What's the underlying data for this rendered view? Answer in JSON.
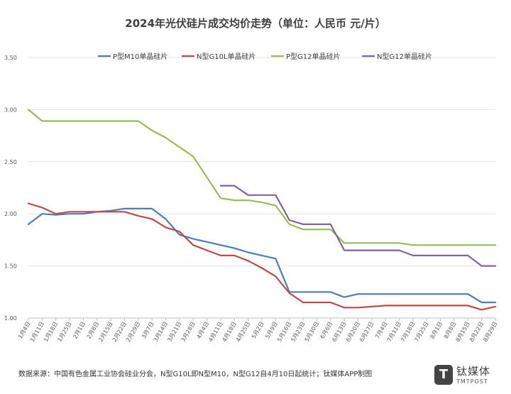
{
  "chart_data": {
    "type": "line",
    "title": "2024年光伏硅片成交均价走势（单位：人民币 元/片）",
    "footnote": "数据来源：中国有色金属工业协会硅业分会，N型G10L即N型M10，N型G12自4月10日起统计；钛媒体APP制图",
    "ylim": [
      1.0,
      3.5
    ],
    "yticks": [
      "1.00",
      "1.50",
      "2.00",
      "2.50",
      "3.00",
      "3.50"
    ],
    "categories": [
      "1月4日",
      "1月11日",
      "1月18日",
      "1月25日",
      "2月1日",
      "2月8日",
      "2月15日",
      "2月22日",
      "2月29日",
      "3月7日",
      "3月14日",
      "3月21日",
      "3月28日",
      "4月4日",
      "4月11日",
      "4月18日",
      "4月25日",
      "5月2日",
      "5月9日",
      "5月16日",
      "5月23日",
      "5月30日",
      "6月6日",
      "6月13日",
      "6月20日",
      "6月27日",
      "7月4日",
      "7月11日",
      "7月18日",
      "7月25日",
      "8月1日",
      "8月8日",
      "8月15日",
      "8月22日",
      "8月29日"
    ],
    "series": [
      {
        "name": "P型M10单晶硅片",
        "color": "#4a7ebb",
        "values": [
          1.9,
          2.0,
          1.99,
          2.0,
          2.0,
          2.02,
          2.03,
          2.05,
          2.05,
          2.05,
          1.95,
          1.8,
          1.76,
          1.73,
          1.7,
          1.67,
          1.63,
          1.6,
          1.57,
          1.25,
          1.25,
          1.25,
          1.25,
          1.2,
          1.23,
          1.23,
          1.23,
          1.23,
          1.23,
          1.23,
          1.23,
          1.23,
          1.23,
          1.15,
          1.15
        ]
      },
      {
        "name": "N型G10L单晶硅片",
        "color": "#be4b48",
        "values": [
          2.1,
          2.06,
          2.0,
          2.02,
          2.02,
          2.02,
          2.02,
          2.02,
          1.98,
          1.95,
          1.87,
          1.83,
          1.7,
          1.65,
          1.6,
          1.6,
          1.55,
          1.48,
          1.4,
          1.24,
          1.15,
          1.15,
          1.15,
          1.1,
          1.1,
          1.11,
          1.12,
          1.12,
          1.12,
          1.12,
          1.12,
          1.12,
          1.12,
          1.08,
          1.11
        ]
      },
      {
        "name": "P型G12单晶硅片",
        "color": "#9bbb59",
        "values": [
          3.0,
          2.89,
          2.89,
          2.89,
          2.89,
          2.89,
          2.89,
          2.89,
          2.89,
          2.8,
          2.73,
          2.64,
          2.55,
          2.35,
          2.15,
          2.13,
          2.13,
          2.11,
          2.08,
          1.9,
          1.85,
          1.85,
          1.85,
          1.72,
          1.72,
          1.72,
          1.72,
          1.72,
          1.7,
          1.7,
          1.7,
          1.7,
          1.7,
          1.7,
          1.7
        ]
      },
      {
        "name": "N型G12单晶硅片",
        "color": "#8064a2",
        "values": [
          null,
          null,
          null,
          null,
          null,
          null,
          null,
          null,
          null,
          null,
          null,
          null,
          null,
          null,
          2.27,
          2.27,
          2.18,
          2.18,
          2.18,
          1.94,
          1.9,
          1.9,
          1.9,
          1.65,
          1.65,
          1.65,
          1.65,
          1.65,
          1.6,
          1.6,
          1.6,
          1.6,
          1.6,
          1.5,
          1.5
        ]
      }
    ]
  },
  "brand": {
    "logo_letter": "T",
    "name_cn": "钛媒体",
    "name_en": "TMTPOST"
  }
}
